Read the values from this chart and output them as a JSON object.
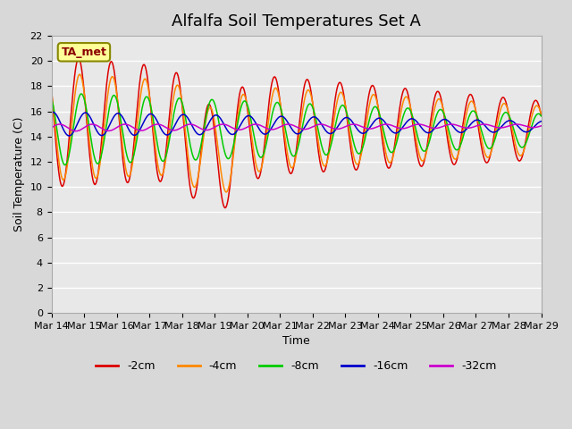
{
  "title": "Alfalfa Soil Temperatures Set A",
  "xlabel": "Time",
  "ylabel": "Soil Temperature (C)",
  "ylim": [
    0,
    22
  ],
  "yticks": [
    0,
    2,
    4,
    6,
    8,
    10,
    12,
    14,
    16,
    18,
    20,
    22
  ],
  "x_labels": [
    "Mar 14",
    "Mar 15",
    "Mar 16",
    "Mar 17",
    "Mar 18",
    "Mar 19",
    "Mar 20",
    "Mar 21",
    "Mar 22",
    "Mar 23",
    "Mar 24",
    "Mar 25",
    "Mar 26",
    "Mar 27",
    "Mar 28",
    "Mar 29"
  ],
  "series_colors": [
    "#dd0000",
    "#ff8800",
    "#00cc00",
    "#0000cc",
    "#cc00cc"
  ],
  "series_labels": [
    "-2cm",
    "-4cm",
    "-8cm",
    "-16cm",
    "-32cm"
  ],
  "annotation_text": "TA_met",
  "annotation_bg": "#ffff99",
  "annotation_border": "#888800",
  "background_color": "#d8d8d8",
  "plot_bg_color": "#e8e8e8",
  "title_fontsize": 13,
  "label_fontsize": 9
}
